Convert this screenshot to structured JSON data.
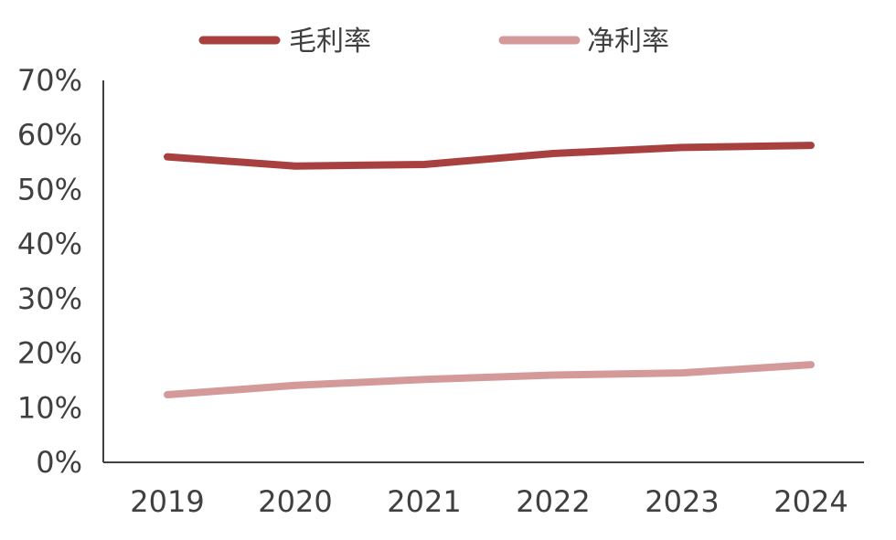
{
  "chart_data": {
    "type": "line",
    "categories": [
      "2019",
      "2020",
      "2021",
      "2022",
      "2023",
      "2024"
    ],
    "series": [
      {
        "name": "毛利率",
        "values": [
          56.0,
          54.3,
          54.6,
          56.6,
          57.7,
          58.1
        ],
        "color": "#a84040"
      },
      {
        "name": "净利率",
        "values": [
          12.4,
          14.1,
          15.2,
          16.0,
          16.4,
          17.9
        ],
        "color": "#d49a9a"
      }
    ],
    "yticks": [
      "0%",
      "10%",
      "20%",
      "30%",
      "40%",
      "50%",
      "60%",
      "70%"
    ],
    "ylim": [
      0,
      70
    ],
    "grid": false,
    "legend_position": "top-center"
  }
}
